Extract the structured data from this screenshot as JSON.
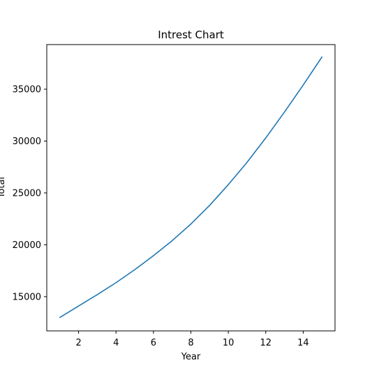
{
  "chart_data": {
    "type": "line",
    "title": "Intrest Chart",
    "xlabel": "Year",
    "ylabel": "Total",
    "xlim": [
      0.3,
      15.7
    ],
    "ylim": [
      11700,
      39300
    ],
    "xticks": [
      2,
      4,
      6,
      8,
      10,
      12,
      14
    ],
    "yticks": [
      15000,
      20000,
      25000,
      30000,
      35000
    ],
    "grid": false,
    "series": [
      {
        "name": "Total",
        "color": "#1f77b4",
        "x": [
          1,
          2,
          3,
          4,
          5,
          6,
          7,
          8,
          9,
          10,
          11,
          12,
          13,
          14,
          15
        ],
        "y": [
          13000,
          14100,
          15200,
          16350,
          17600,
          18950,
          20400,
          22000,
          23800,
          25800,
          27950,
          30300,
          32800,
          35400,
          38100
        ]
      }
    ]
  }
}
